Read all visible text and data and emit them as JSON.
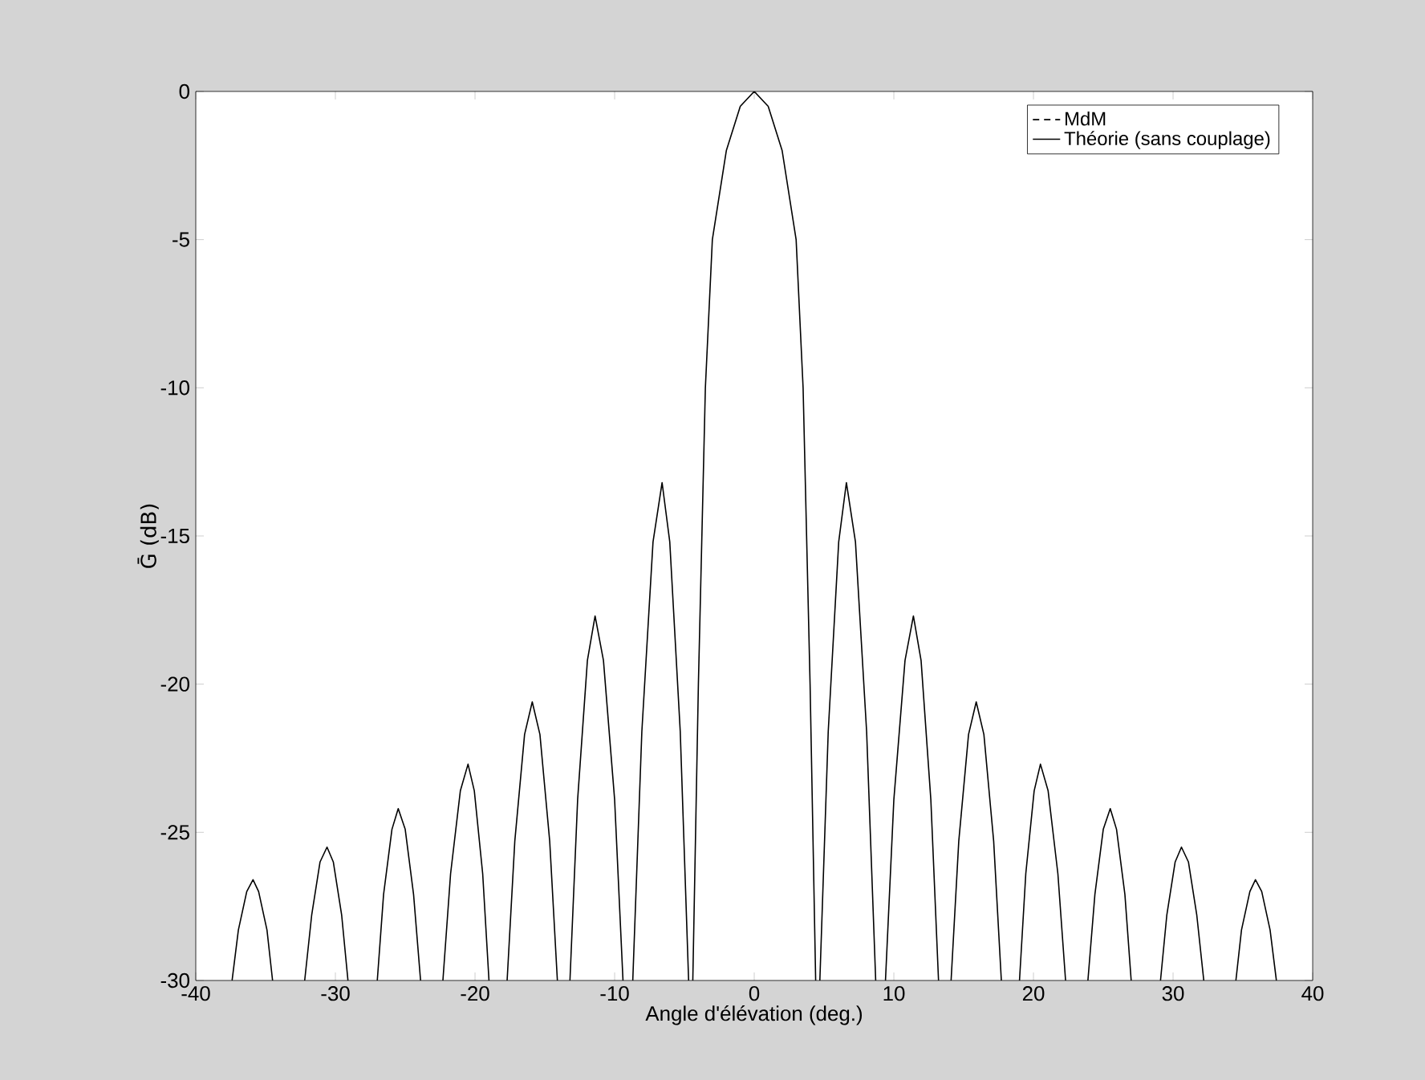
{
  "chart_data": {
    "type": "line",
    "xlabel": "Angle d'élévation (deg.)",
    "ylabel": "Ḡ (dB)",
    "xlim": [
      -40,
      40
    ],
    "ylim": [
      -30,
      0
    ],
    "xticks": [
      -40,
      -30,
      -20,
      -10,
      0,
      10,
      20,
      30,
      40
    ],
    "yticks": [
      -30,
      -25,
      -20,
      -15,
      -10,
      -5,
      0
    ],
    "grid": false,
    "legend": "top right",
    "x": [
      -37.4,
      -36.95,
      -36.35,
      -35.9,
      -35.5,
      -34.9,
      -34.5,
      -33.4,
      -32.2,
      -31.7,
      -31.1,
      -30.6,
      -30.15,
      -29.55,
      -29.1,
      -28.0,
      -27.0,
      -26.55,
      -25.95,
      -25.5,
      -25.0,
      -24.4,
      -23.9,
      -23.1,
      -22.3,
      -21.75,
      -21.05,
      -20.5,
      -20.05,
      -19.45,
      -19.0,
      -18.4,
      -17.7,
      -17.15,
      -16.45,
      -15.9,
      -15.35,
      -14.65,
      -14.1,
      -13.6,
      -13.2,
      -12.65,
      -11.95,
      -11.4,
      -10.8,
      -10.0,
      -9.4,
      -9.0,
      -8.7,
      -8.05,
      -7.25,
      -6.6,
      -6.05,
      -5.3,
      -4.7,
      -4.55,
      -4.4,
      -4.0,
      -3.5,
      -3.0,
      -2.0,
      -1.0,
      0,
      1.0,
      2.0,
      3.0,
      3.5,
      4.0,
      4.4,
      4.55,
      4.7,
      5.3,
      6.05,
      6.6,
      7.25,
      8.05,
      8.7,
      9.0,
      9.4,
      10.0,
      10.8,
      11.4,
      11.95,
      12.65,
      13.2,
      13.6,
      14.1,
      14.65,
      15.35,
      15.9,
      16.45,
      17.15,
      17.7,
      18.4,
      19.0,
      19.45,
      20.05,
      20.5,
      21.05,
      21.75,
      22.3,
      23.1,
      23.9,
      24.4,
      25.0,
      25.5,
      25.95,
      26.55,
      27.0,
      28.0,
      29.1,
      29.55,
      30.15,
      30.6,
      31.1,
      31.7,
      32.2,
      33.4,
      34.5,
      34.9,
      35.5,
      35.9,
      36.35,
      36.95,
      37.4
    ],
    "series": [
      {
        "name": "MdM",
        "color": "#000000",
        "line_style": "dashed",
        "values": [
          null,
          null,
          null,
          null,
          null,
          null,
          null,
          null,
          null,
          null,
          null,
          null,
          null,
          null,
          null,
          null,
          null,
          null,
          null,
          null,
          null,
          null,
          null,
          null,
          null,
          null,
          null,
          null,
          null,
          null,
          null,
          null,
          null,
          null,
          null,
          null,
          null,
          null,
          null,
          null,
          null,
          null,
          null,
          null,
          null,
          null,
          null,
          null,
          null,
          null,
          null,
          null,
          null,
          null,
          null,
          null,
          null,
          null,
          null,
          null,
          null,
          null,
          null,
          null,
          null,
          null,
          null,
          null,
          null,
          null,
          null,
          null,
          null,
          null,
          null,
          null,
          null,
          null,
          null,
          null,
          null,
          null,
          null,
          null,
          null,
          null,
          null,
          null,
          null,
          null,
          null,
          null,
          null,
          null,
          null,
          null,
          null,
          null,
          null,
          null,
          null,
          null,
          null,
          null,
          null,
          null,
          null,
          null,
          null,
          null,
          null,
          null,
          null,
          null,
          null,
          null,
          null,
          null,
          null,
          null,
          null,
          null,
          null,
          null,
          null
        ]
      },
      {
        "name": "Théorie (sans couplage)",
        "color": "#000000",
        "line_style": "solid",
        "values": [
          -30,
          -28.3,
          -27.0,
          -26.6,
          -27.0,
          -28.3,
          -30,
          null,
          -30,
          -27.8,
          -26.0,
          -25.5,
          -26.0,
          -27.8,
          -30,
          null,
          -30,
          -27.1,
          -24.9,
          -24.2,
          -24.9,
          -27.1,
          -30,
          null,
          -30,
          -26.4,
          -23.6,
          -22.7,
          -23.6,
          -26.4,
          -30,
          null,
          -30,
          -25.3,
          -21.7,
          -20.6,
          -21.7,
          -25.3,
          -30,
          null,
          -30,
          -23.9,
          -19.2,
          -17.7,
          -19.2,
          -23.9,
          -30,
          null,
          -30,
          -21.6,
          -15.2,
          -13.2,
          -15.2,
          -21.6,
          -30,
          null,
          -30,
          -20,
          -10,
          -5,
          -2,
          -0.5,
          0,
          -0.5,
          -2,
          -5,
          -10,
          -20,
          -30,
          null,
          -30,
          -21.6,
          -15.2,
          -13.2,
          -15.2,
          -21.6,
          -30,
          null,
          -30,
          -23.9,
          -19.2,
          -17.7,
          -19.2,
          -23.9,
          -30,
          null,
          -30,
          -25.3,
          -21.7,
          -20.6,
          -21.7,
          -25.3,
          -30,
          null,
          -30,
          -26.4,
          -23.6,
          -22.7,
          -23.6,
          -26.4,
          -30,
          null,
          -30,
          -27.1,
          -24.9,
          -24.2,
          -24.9,
          -27.1,
          -30,
          null,
          -30,
          -27.8,
          -26.0,
          -25.5,
          -26.0,
          -27.8,
          -30,
          null,
          -30,
          -28.3,
          -27.0,
          -26.6,
          -27.0,
          -28.3,
          -30
        ]
      }
    ]
  }
}
